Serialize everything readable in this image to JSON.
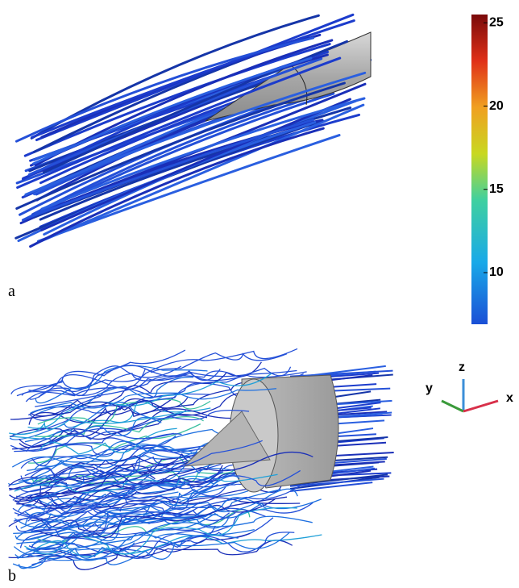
{
  "panels": [
    {
      "label": "a"
    },
    {
      "label": "b"
    }
  ],
  "colorbar": {
    "range": [
      6.9,
      25.5
    ],
    "ticks": [
      25,
      20,
      15,
      10
    ]
  },
  "axes_triad": {
    "z": "z",
    "y": "y",
    "x": "x"
  }
}
